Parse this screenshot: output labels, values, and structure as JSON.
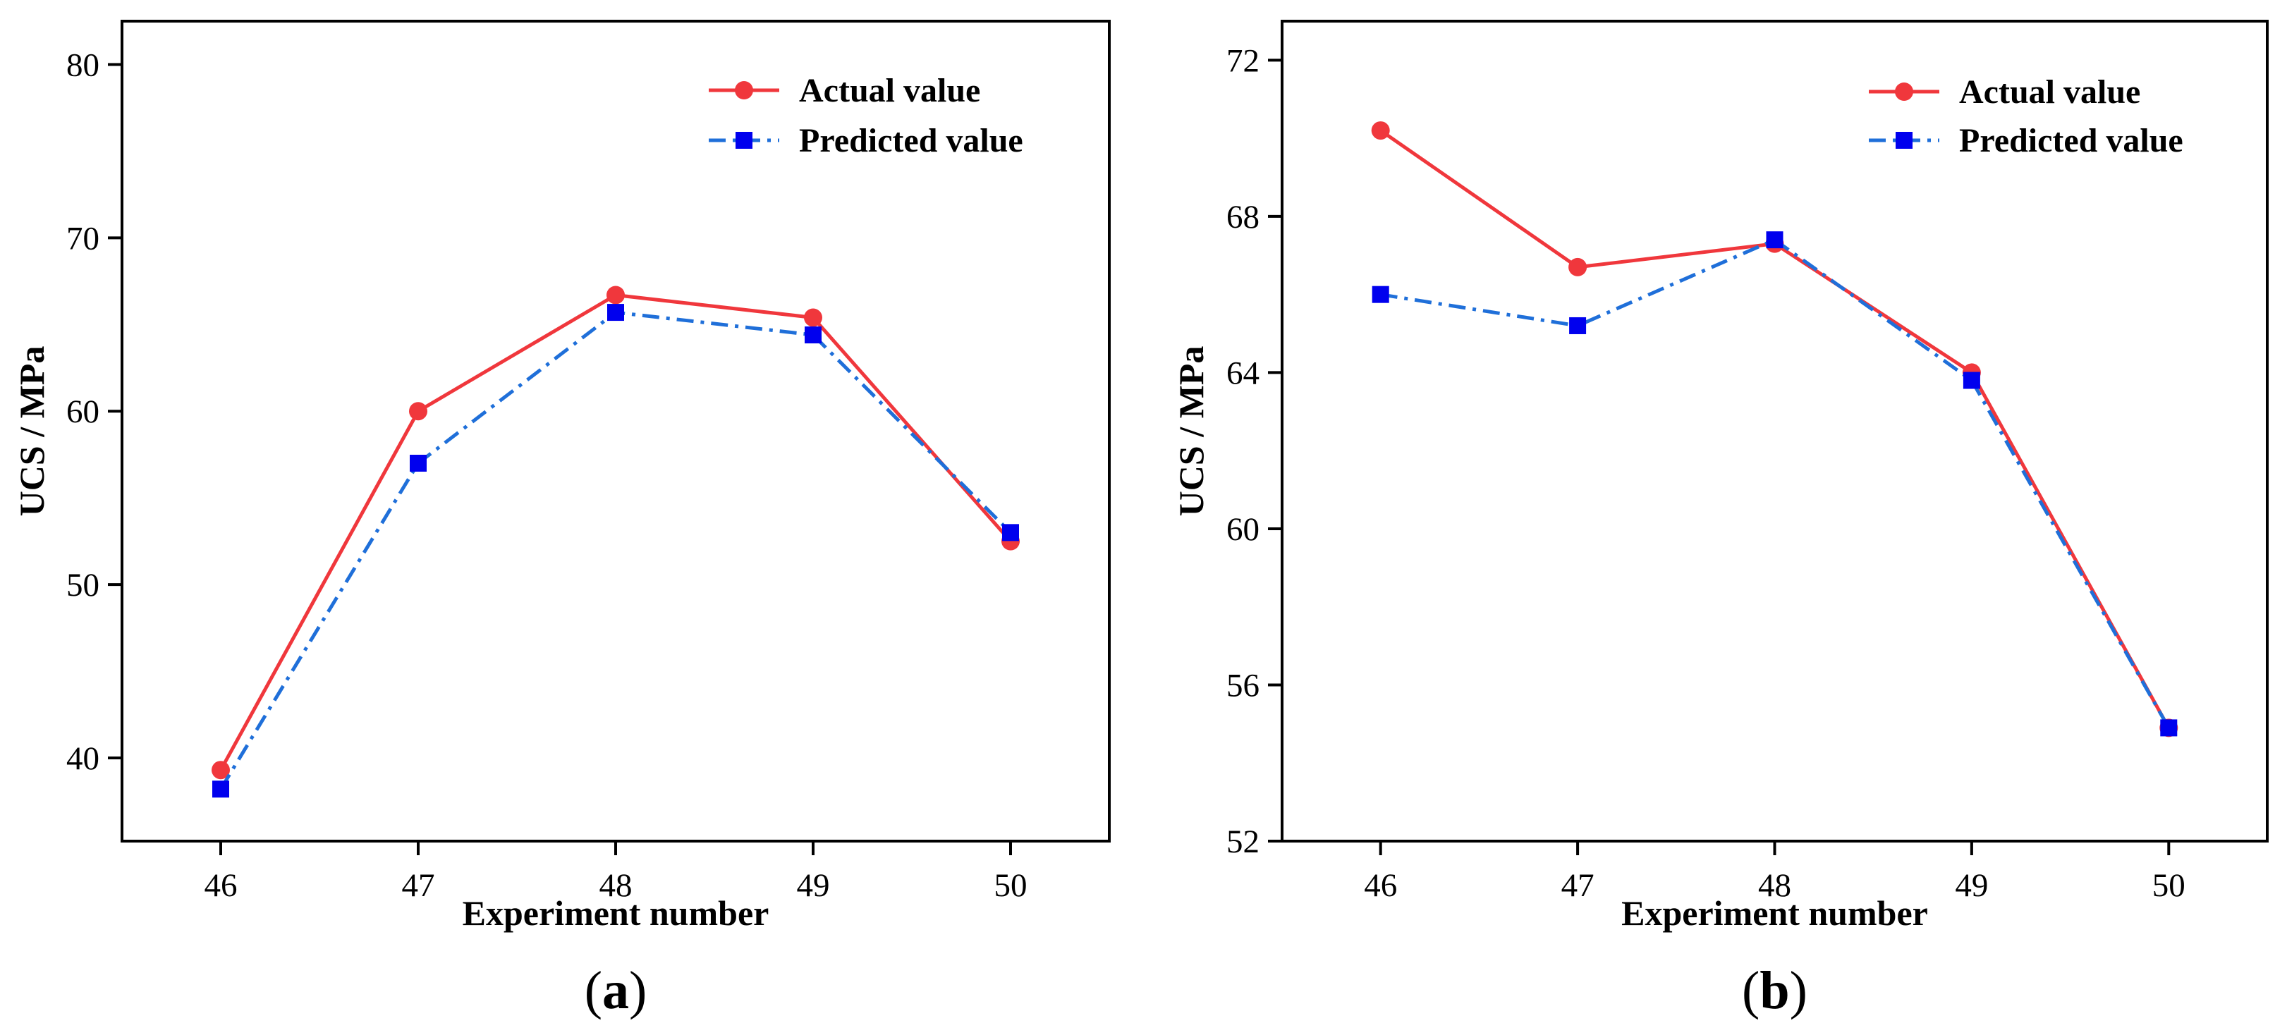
{
  "colors": {
    "actual": "#f0373c",
    "predicted_line": "#1f6fd9",
    "predicted_marker": "#0000ee",
    "axis": "#000000"
  },
  "chart_data": [
    {
      "type": "line",
      "panel_label": "a",
      "xlabel": "Experiment number",
      "ylabel": "UCS / MPa",
      "categories": [
        46,
        47,
        48,
        49,
        50
      ],
      "xlim": [
        45.5,
        50.5
      ],
      "ylim": [
        35.2,
        82.5
      ],
      "yticks": [
        40,
        50,
        60,
        70,
        80
      ],
      "legend_position": "top-right",
      "grid": false,
      "series": [
        {
          "name": "Actual value",
          "marker": "circle",
          "line_style": "solid",
          "values": [
            39.3,
            60.0,
            66.7,
            65.4,
            52.5
          ]
        },
        {
          "name": "Predicted value",
          "marker": "square",
          "line_style": "dash-dot",
          "values": [
            38.2,
            57.0,
            65.7,
            64.4,
            53.0
          ]
        }
      ]
    },
    {
      "type": "line",
      "panel_label": "b",
      "xlabel": "Experiment number",
      "ylabel": "UCS / MPa",
      "categories": [
        46,
        47,
        48,
        49,
        50
      ],
      "xlim": [
        45.5,
        50.5
      ],
      "ylim": [
        52.0,
        73.0
      ],
      "yticks": [
        52,
        56,
        60,
        64,
        68,
        72
      ],
      "legend_position": "top-right",
      "grid": false,
      "series": [
        {
          "name": "Actual value",
          "marker": "circle",
          "line_style": "solid",
          "values": [
            70.2,
            66.7,
            67.3,
            64.0,
            54.9
          ]
        },
        {
          "name": "Predicted value",
          "marker": "square",
          "line_style": "dash-dot",
          "values": [
            66.0,
            65.2,
            67.4,
            63.8,
            54.9
          ]
        }
      ]
    }
  ]
}
